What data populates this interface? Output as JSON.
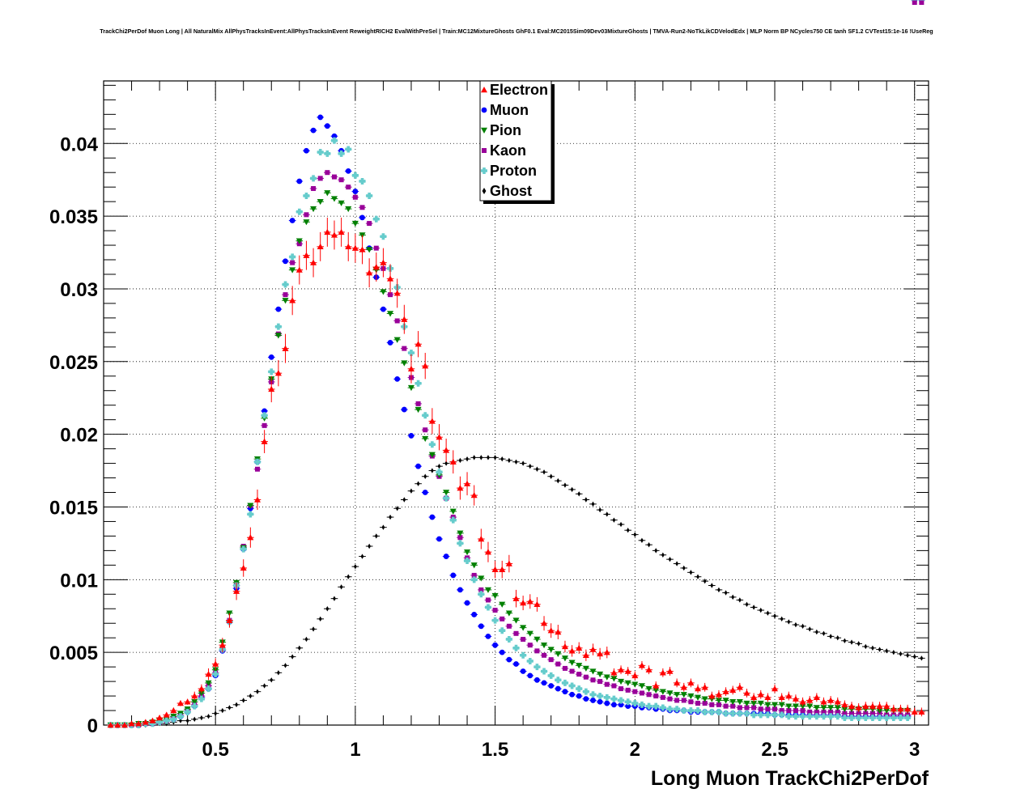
{
  "chart_data": {
    "type": "scatter",
    "title": "TrackChi2PerDof Muon Long | All NaturalMix AllPhysTracksInEvent:AllPhysTracksInEvent ReweightRICH2 EvalWithPreSel | Train:MC12MixtureGhosts GhF0.1 Eval:MC2015Sim09Dev03MixtureGhosts | TMVA-Run2-NoTkLikCDVelodEdx | MLP Norm BP NCycles750 CE tanh SF1.2 CVTest15:1e-16 !UseReg",
    "xlabel": "Long Muon TrackChi2PerDof",
    "ylabel": "",
    "xlim": [
      0.1,
      3.05
    ],
    "ylim": [
      0,
      0.0443
    ],
    "grid": true,
    "legend_position": "top-center",
    "x_ticks": [
      0.5,
      1,
      1.5,
      2,
      2.5,
      3
    ],
    "x_tick_labels": [
      "0.5",
      "1",
      "1.5",
      "2",
      "2.5",
      "3"
    ],
    "y_ticks": [
      0,
      0.005,
      0.01,
      0.015,
      0.02,
      0.025,
      0.03,
      0.035,
      0.04
    ],
    "y_tick_labels": [
      "0",
      "0.005",
      "0.01",
      "0.015",
      "0.02",
      "0.025",
      "0.03",
      "0.035",
      "0.04"
    ],
    "x": [
      0.125,
      0.15,
      0.175,
      0.2,
      0.225,
      0.25,
      0.275,
      0.3,
      0.325,
      0.35,
      0.375,
      0.4,
      0.425,
      0.45,
      0.475,
      0.5,
      0.525,
      0.55,
      0.575,
      0.6,
      0.625,
      0.65,
      0.675,
      0.7,
      0.725,
      0.75,
      0.775,
      0.8,
      0.825,
      0.85,
      0.875,
      0.9,
      0.925,
      0.95,
      0.975,
      1.0,
      1.025,
      1.05,
      1.075,
      1.1,
      1.125,
      1.15,
      1.175,
      1.2,
      1.225,
      1.25,
      1.275,
      1.3,
      1.325,
      1.35,
      1.375,
      1.4,
      1.425,
      1.45,
      1.475,
      1.5,
      1.525,
      1.55,
      1.575,
      1.6,
      1.625,
      1.65,
      1.675,
      1.7,
      1.725,
      1.75,
      1.775,
      1.8,
      1.825,
      1.85,
      1.875,
      1.9,
      1.925,
      1.95,
      1.975,
      2.0,
      2.025,
      2.05,
      2.075,
      2.1,
      2.125,
      2.15,
      2.175,
      2.2,
      2.225,
      2.25,
      2.275,
      2.3,
      2.325,
      2.35,
      2.375,
      2.4,
      2.425,
      2.45,
      2.475,
      2.5,
      2.525,
      2.55,
      2.575,
      2.6,
      2.625,
      2.65,
      2.675,
      2.7,
      2.725,
      2.75,
      2.775,
      2.8,
      2.825,
      2.85,
      2.875,
      2.9,
      2.925,
      2.95,
      2.975,
      3.0,
      3.025
    ],
    "series": [
      {
        "name": "Electron",
        "color": "#ff0000",
        "marker": "triangle-up",
        "values": [
          0.0,
          0.0,
          0.0,
          0.0001,
          0.0001,
          0.0002,
          0.0003,
          0.0005,
          0.0007,
          0.001,
          0.0015,
          0.0016,
          0.002,
          0.0025,
          0.0035,
          0.0042,
          0.0055,
          0.0072,
          0.0092,
          0.0108,
          0.0129,
          0.0155,
          0.0195,
          0.0231,
          0.0242,
          0.0259,
          0.0292,
          0.0313,
          0.0323,
          0.0318,
          0.0329,
          0.0339,
          0.0337,
          0.0339,
          0.0329,
          0.0328,
          0.0327,
          0.0311,
          0.0315,
          0.0318,
          0.0307,
          0.0297,
          0.0279,
          0.0245,
          0.0262,
          0.0247,
          0.0209,
          0.0198,
          0.0189,
          0.0181,
          0.0163,
          0.0166,
          0.0158,
          0.0128,
          0.0119,
          0.0107,
          0.0107,
          0.0111,
          0.0087,
          0.0084,
          0.0085,
          0.0083,
          0.007,
          0.0065,
          0.0064,
          0.0054,
          0.0051,
          0.0053,
          0.0048,
          0.0052,
          0.0049,
          0.005,
          0.0036,
          0.0038,
          0.0037,
          0.0034,
          0.0041,
          0.0038,
          0.0027,
          0.0036,
          0.0037,
          0.0029,
          0.0026,
          0.0029,
          0.0025,
          0.0026,
          0.002,
          0.0021,
          0.0023,
          0.0024,
          0.0026,
          0.0022,
          0.0019,
          0.0021,
          0.0019,
          0.0025,
          0.0019,
          0.002,
          0.0018,
          0.0016,
          0.0017,
          0.0019,
          0.0016,
          0.0017,
          0.0016,
          0.0014,
          0.0013,
          0.0012,
          0.0013,
          0.0013,
          0.0013,
          0.0013,
          0.0011,
          0.0011,
          0.0011,
          0.0009,
          0.0009
        ],
        "errors": [
          0.0,
          0.0,
          0.0,
          0.0,
          0.0,
          0.0001,
          0.0001,
          0.0001,
          0.0001,
          0.0002,
          0.0002,
          0.0002,
          0.0003,
          0.0003,
          0.0004,
          0.0004,
          0.0005,
          0.0005,
          0.0006,
          0.0006,
          0.0007,
          0.0007,
          0.0008,
          0.0009,
          0.0009,
          0.001,
          0.001,
          0.001,
          0.001,
          0.001,
          0.001,
          0.001,
          0.001,
          0.001,
          0.001,
          0.001,
          0.001,
          0.001,
          0.001,
          0.001,
          0.001,
          0.001,
          0.001,
          0.001,
          0.0009,
          0.0009,
          0.0009,
          0.0009,
          0.0008,
          0.0008,
          0.0008,
          0.0008,
          0.0007,
          0.0007,
          0.0007,
          0.0006,
          0.0006,
          0.0006,
          0.0006,
          0.0005,
          0.0005,
          0.0005,
          0.0005,
          0.0005,
          0.0005,
          0.0004,
          0.0004,
          0.0004,
          0.0004,
          0.0004,
          0.0004,
          0.0004,
          0.0003,
          0.0003,
          0.0003,
          0.0003,
          0.0003,
          0.0003,
          0.0003,
          0.0003,
          0.0003,
          0.0003,
          0.0003,
          0.0003,
          0.0003,
          0.0003,
          0.0003,
          0.0003,
          0.0003,
          0.0003,
          0.0003,
          0.0003,
          0.0003,
          0.0003,
          0.0003,
          0.0003,
          0.0003,
          0.0003,
          0.0003,
          0.0003,
          0.0003,
          0.0003,
          0.0003,
          0.0003,
          0.0003,
          0.0003,
          0.0003,
          0.0003,
          0.0003,
          0.0003,
          0.0003,
          0.0003,
          0.0003,
          0.0003,
          0.0003,
          0.0003,
          0.0003
        ]
      },
      {
        "name": "Muon",
        "color": "#0000ff",
        "marker": "circle",
        "values": [
          0.0,
          0.0,
          0.0,
          0.0,
          0.0,
          0.0001,
          0.0001,
          0.0002,
          0.0003,
          0.0004,
          0.0006,
          0.0009,
          0.0013,
          0.0019,
          0.0025,
          0.0034,
          0.0051,
          0.0071,
          0.0094,
          0.0121,
          0.0149,
          0.0181,
          0.0216,
          0.0253,
          0.0286,
          0.0319,
          0.0347,
          0.0374,
          0.0395,
          0.0409,
          0.0418,
          0.0412,
          0.0405,
          0.0395,
          0.0381,
          0.0367,
          0.0349,
          0.0328,
          0.0308,
          0.0286,
          0.0263,
          0.0238,
          0.0217,
          0.0199,
          0.0178,
          0.016,
          0.0143,
          0.0128,
          0.0116,
          0.0103,
          0.0093,
          0.0084,
          0.0076,
          0.0068,
          0.0061,
          0.0055,
          0.005,
          0.0045,
          0.0042,
          0.0037,
          0.0034,
          0.0031,
          0.0029,
          0.0027,
          0.0025,
          0.0023,
          0.0021,
          0.002,
          0.0018,
          0.0017,
          0.0016,
          0.0015,
          0.0014,
          0.0014,
          0.0013,
          0.0013,
          0.0012,
          0.0012,
          0.0011,
          0.0011,
          0.001,
          0.001,
          0.001,
          0.0009,
          0.0009,
          0.0009,
          0.0009,
          0.0009,
          0.0008,
          0.0008,
          0.0008,
          0.0008,
          0.0008,
          0.0008,
          0.0008,
          0.0007,
          0.0007,
          0.0007,
          0.0007,
          0.0007,
          0.0007,
          0.0007,
          0.0007,
          0.0007,
          0.0007,
          0.0006,
          0.0006,
          0.0006,
          0.0006,
          0.0006,
          0.0006,
          0.0006,
          0.0006,
          0.0006,
          0.0006
        ]
      },
      {
        "name": "Pion",
        "color": "#008000",
        "marker": "triangle-down",
        "values": [
          0.0,
          0.0,
          0.0,
          0.0,
          0.0001,
          0.0001,
          0.0002,
          0.0003,
          0.0004,
          0.0006,
          0.0008,
          0.0011,
          0.0016,
          0.0022,
          0.0029,
          0.0038,
          0.0057,
          0.0077,
          0.0098,
          0.0122,
          0.0151,
          0.0183,
          0.0211,
          0.0238,
          0.0268,
          0.0292,
          0.0313,
          0.0333,
          0.0346,
          0.0355,
          0.036,
          0.0366,
          0.0362,
          0.0359,
          0.0355,
          0.0345,
          0.0337,
          0.0327,
          0.0313,
          0.0298,
          0.0283,
          0.0265,
          0.0249,
          0.0232,
          0.0217,
          0.0197,
          0.0186,
          0.0172,
          0.016,
          0.0147,
          0.0132,
          0.0119,
          0.011,
          0.0101,
          0.0093,
          0.0089,
          0.0083,
          0.0077,
          0.0072,
          0.0067,
          0.0063,
          0.0059,
          0.0055,
          0.0052,
          0.0049,
          0.0046,
          0.0043,
          0.0041,
          0.0039,
          0.0037,
          0.0035,
          0.0033,
          0.0032,
          0.003,
          0.0029,
          0.0028,
          0.0027,
          0.0025,
          0.0024,
          0.0023,
          0.0022,
          0.0021,
          0.0021,
          0.002,
          0.0019,
          0.0018,
          0.0018,
          0.0017,
          0.0017,
          0.0016,
          0.0016,
          0.0015,
          0.0015,
          0.0015,
          0.0014,
          0.0014,
          0.0014,
          0.0013,
          0.0013,
          0.0013,
          0.0013,
          0.0012,
          0.0012,
          0.0012,
          0.0012,
          0.0011,
          0.0011,
          0.0011,
          0.0011,
          0.0011,
          0.001,
          0.001,
          0.001,
          0.001,
          0.001
        ]
      },
      {
        "name": "Kaon",
        "color": "#990099",
        "marker": "square",
        "values": [
          0.0,
          0.0,
          0.0,
          0.0,
          0.0,
          0.0001,
          0.0001,
          0.0002,
          0.0003,
          0.0005,
          0.0007,
          0.001,
          0.0014,
          0.002,
          0.0027,
          0.0036,
          0.0052,
          0.0072,
          0.0096,
          0.0123,
          0.0151,
          0.0176,
          0.0206,
          0.0236,
          0.0269,
          0.0296,
          0.0318,
          0.0331,
          0.0351,
          0.0369,
          0.0376,
          0.038,
          0.0377,
          0.0375,
          0.037,
          0.0363,
          0.0356,
          0.0345,
          0.0328,
          0.0314,
          0.0296,
          0.0278,
          0.0259,
          0.0239,
          0.0221,
          0.0203,
          0.0185,
          0.0171,
          0.0156,
          0.0143,
          0.0129,
          0.0115,
          0.0103,
          0.0093,
          0.0086,
          0.0079,
          0.0073,
          0.0068,
          0.0063,
          0.0059,
          0.0055,
          0.0051,
          0.0048,
          0.0045,
          0.0042,
          0.0039,
          0.0037,
          0.0035,
          0.0033,
          0.0031,
          0.003,
          0.0028,
          0.0027,
          0.0025,
          0.0024,
          0.0023,
          0.0022,
          0.0021,
          0.002,
          0.0019,
          0.0018,
          0.0017,
          0.0017,
          0.0016,
          0.0015,
          0.0015,
          0.0014,
          0.0014,
          0.0013,
          0.0013,
          0.0012,
          0.0012,
          0.0012,
          0.0011,
          0.0011,
          0.0011,
          0.001,
          0.001,
          0.001,
          0.001,
          0.0009,
          0.0009,
          0.0009,
          0.0009,
          0.0009,
          0.0008,
          0.0008,
          0.0008,
          0.0008,
          0.0008,
          0.0008,
          0.0007,
          0.0007,
          0.0007,
          0.0007
        ]
      },
      {
        "name": "Proton",
        "color": "#66cccc",
        "marker": "cross",
        "values": [
          0.0,
          0.0,
          0.0,
          0.0,
          0.0,
          0.0001,
          0.0001,
          0.0002,
          0.0003,
          0.0004,
          0.0006,
          0.0009,
          0.0013,
          0.0018,
          0.0025,
          0.0035,
          0.0052,
          0.0071,
          0.0096,
          0.0121,
          0.0145,
          0.0181,
          0.0213,
          0.0243,
          0.0274,
          0.0303,
          0.0322,
          0.0353,
          0.0364,
          0.0376,
          0.0394,
          0.0393,
          0.0402,
          0.0393,
          0.0396,
          0.0378,
          0.0374,
          0.0364,
          0.0348,
          0.0336,
          0.0314,
          0.0301,
          0.0274,
          0.0256,
          0.0235,
          0.0213,
          0.0193,
          0.0174,
          0.0156,
          0.0141,
          0.0125,
          0.0113,
          0.01,
          0.009,
          0.0081,
          0.0072,
          0.0065,
          0.0059,
          0.0053,
          0.0048,
          0.0044,
          0.004,
          0.0037,
          0.0034,
          0.0031,
          0.0029,
          0.0027,
          0.0025,
          0.0023,
          0.0021,
          0.002,
          0.0019,
          0.0018,
          0.0017,
          0.0016,
          0.0015,
          0.0014,
          0.0013,
          0.0013,
          0.0012,
          0.0011,
          0.0011,
          0.001,
          0.001,
          0.001,
          0.0009,
          0.0009,
          0.0009,
          0.0008,
          0.0008,
          0.0008,
          0.0008,
          0.0007,
          0.0007,
          0.0007,
          0.0007,
          0.0007,
          0.0006,
          0.0006,
          0.0006,
          0.0006,
          0.0006,
          0.0006,
          0.0006,
          0.0006,
          0.0005,
          0.0005,
          0.0005,
          0.0005,
          0.0005,
          0.0005,
          0.0005,
          0.0005,
          0.0005,
          0.0005
        ]
      },
      {
        "name": "Ghost",
        "color": "#000000",
        "marker": "diamond",
        "values": [
          0.0,
          0.0,
          0.0,
          0.0,
          0.0,
          0.0,
          0.0001,
          0.0001,
          0.0001,
          0.0002,
          0.0003,
          0.0003,
          0.0004,
          0.0005,
          0.0006,
          0.0008,
          0.001,
          0.0012,
          0.0014,
          0.0017,
          0.002,
          0.0023,
          0.0027,
          0.0031,
          0.0036,
          0.0041,
          0.0047,
          0.0053,
          0.0059,
          0.0066,
          0.0073,
          0.008,
          0.0087,
          0.0095,
          0.0102,
          0.0109,
          0.0116,
          0.0123,
          0.013,
          0.0136,
          0.0143,
          0.0149,
          0.0155,
          0.0161,
          0.0166,
          0.0171,
          0.0175,
          0.0178,
          0.018,
          0.0181,
          0.0182,
          0.0183,
          0.0184,
          0.0184,
          0.0184,
          0.0184,
          0.0183,
          0.0182,
          0.0181,
          0.018,
          0.0178,
          0.0176,
          0.0174,
          0.0171,
          0.0168,
          0.0165,
          0.0162,
          0.0159,
          0.0155,
          0.0152,
          0.0148,
          0.0145,
          0.0141,
          0.0138,
          0.0134,
          0.0131,
          0.0127,
          0.0124,
          0.012,
          0.0117,
          0.0114,
          0.0111,
          0.0108,
          0.0105,
          0.0102,
          0.0099,
          0.0096,
          0.0093,
          0.0091,
          0.0088,
          0.0086,
          0.0083,
          0.0081,
          0.0079,
          0.0077,
          0.0075,
          0.0073,
          0.0071,
          0.0069,
          0.0068,
          0.0066,
          0.0064,
          0.0063,
          0.0061,
          0.006,
          0.0058,
          0.0057,
          0.0056,
          0.0054,
          0.0053,
          0.0052,
          0.0051,
          0.005,
          0.0049,
          0.0048,
          0.0047,
          0.0046
        ]
      }
    ]
  }
}
